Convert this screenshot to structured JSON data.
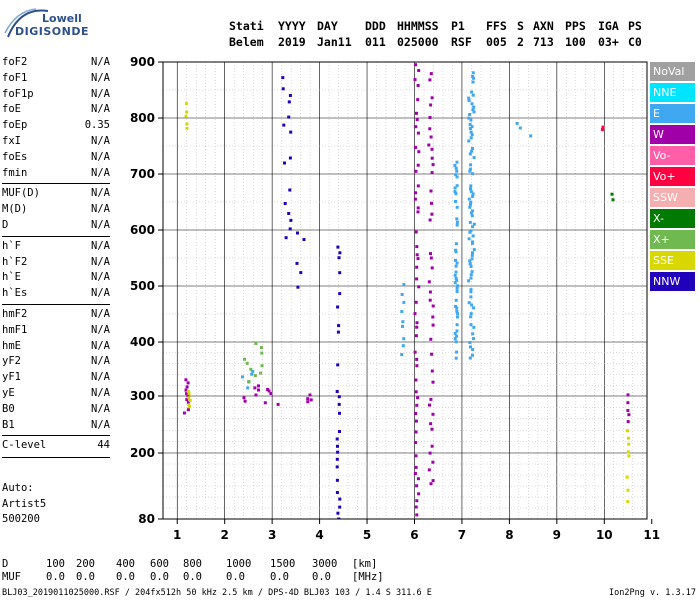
{
  "logo": {
    "line1": "Lowell",
    "line2": "DIGISONDE"
  },
  "header": {
    "row1": [
      "Stati",
      "YYYY",
      "DAY",
      "DDD",
      "HHMMSS",
      "P1",
      "FFS",
      "S",
      "AXN",
      "PPS",
      "IGA",
      "PS"
    ],
    "row2": [
      "Belem",
      "2019",
      "Jan11",
      "011",
      "025000",
      "RSF",
      "005",
      "2",
      "713",
      "100",
      "03+",
      "C0"
    ]
  },
  "params": {
    "group1": [
      {
        "name": "foF2",
        "value": "N/A"
      },
      {
        "name": "foF1",
        "value": "N/A"
      },
      {
        "name": "foF1p",
        "value": "N/A"
      },
      {
        "name": "foE",
        "value": "N/A"
      },
      {
        "name": "foEp",
        "value": "0.35"
      },
      {
        "name": "fxI",
        "value": "N/A"
      },
      {
        "name": "foEs",
        "value": "N/A"
      },
      {
        "name": "fmin",
        "value": "N/A"
      }
    ],
    "group2": [
      {
        "name": "MUF(D)",
        "value": "N/A"
      },
      {
        "name": "M(D)",
        "value": "N/A"
      },
      {
        "name": "D",
        "value": "N/A"
      }
    ],
    "group3": [
      {
        "name": "h`F",
        "value": "N/A"
      },
      {
        "name": "h`F2",
        "value": "N/A"
      },
      {
        "name": "h`E",
        "value": "N/A"
      },
      {
        "name": "h`Es",
        "value": "N/A"
      }
    ],
    "group4": [
      {
        "name": "hmF2",
        "value": "N/A"
      },
      {
        "name": "hmF1",
        "value": "N/A"
      },
      {
        "name": "hmE",
        "value": "N/A"
      },
      {
        "name": "yF2",
        "value": "N/A"
      },
      {
        "name": "yF1",
        "value": "N/A"
      },
      {
        "name": "yE",
        "value": "N/A"
      },
      {
        "name": "B0",
        "value": "N/A"
      },
      {
        "name": "B1",
        "value": "N/A"
      }
    ],
    "group5": [
      {
        "name": "C-level",
        "value": "44"
      }
    ]
  },
  "auto": {
    "line1": "Auto:",
    "line2": "Artist5",
    "line3": "500200"
  },
  "bottom_table": {
    "d_label": "D",
    "d_values": [
      "100",
      "200",
      "400",
      "600",
      "800",
      "1000",
      "1500",
      "3000",
      "[km]"
    ],
    "muf_label": "MUF",
    "muf_values": [
      "0.0",
      "0.0",
      "0.0",
      "0.0",
      "0.0",
      "0.0",
      "0.0",
      "0.0",
      "[MHz]"
    ]
  },
  "footer": {
    "left": "BLJ03_2019011025000.RSF / 204fx512h 50 kHz 2.5 km / DPS-4D BLJ03 103 / 1.4 S 311.6 E",
    "right": "Ion2Png v. 1.3.17"
  },
  "legend": [
    {
      "label": "NoVal",
      "color": "#a0a0a0"
    },
    {
      "label": "NNE",
      "color": "#00e5ff"
    },
    {
      "label": "E",
      "color": "#40a8f0"
    },
    {
      "label": "W",
      "color": "#a000a8"
    },
    {
      "label": "Vo-",
      "color": "#ff5fa8"
    },
    {
      "label": "Vo+",
      "color": "#ff0040"
    },
    {
      "label": "SSW",
      "color": "#f4b0b0"
    },
    {
      "label": "X-",
      "color": "#007a00"
    },
    {
      "label": "X+",
      "color": "#70b850"
    },
    {
      "label": "SSE",
      "color": "#d8d800"
    },
    {
      "label": "NNW",
      "color": "#2000b8"
    }
  ],
  "chart_data": {
    "type": "scatter",
    "title": "",
    "xlabel": "",
    "ylabel": "",
    "xlim": [
      0.7,
      10.9
    ],
    "ylim": [
      80,
      900
    ],
    "x_ticks": [
      1,
      2,
      3,
      4,
      5,
      6,
      7,
      8,
      9,
      10,
      11
    ],
    "y_ticks": [
      80,
      200,
      300,
      400,
      500,
      600,
      700,
      800,
      900
    ],
    "y_scale": "nonlinear",
    "grid": true,
    "legend_position": "right",
    "clusters": [
      {
        "series": "E",
        "x": 7.2,
        "y_start": 370,
        "y_end": 900,
        "step": 5,
        "jitter": 0.06
      },
      {
        "series": "E",
        "x": 6.88,
        "y_start": 370,
        "y_end": 720,
        "step": 5,
        "jitter": 0.03
      },
      {
        "series": "W",
        "x": 6.05,
        "y_start": 90,
        "y_end": 900,
        "step": 12,
        "jitter": 0.04
      },
      {
        "series": "W",
        "x": 6.35,
        "y_start": 140,
        "y_end": 900,
        "step": 14,
        "jitter": 0.05
      },
      {
        "series": "NNW",
        "x": 4.4,
        "y_start": 80,
        "y_end": 580,
        "step": 12,
        "jitter": 0.03
      },
      {
        "series": "NNW",
        "x": 3.3,
        "y_start": 590,
        "y_end": 870,
        "step": 14,
        "jitter": 0.1
      },
      {
        "series": "W",
        "x": 3.0,
        "y_start": 285,
        "y_end": 320,
        "step": 4,
        "jitter": 0.15
      },
      {
        "series": "W",
        "x": 2.6,
        "y_start": 290,
        "y_end": 330,
        "step": 4,
        "jitter": 0.2
      },
      {
        "series": "X+",
        "x": 2.6,
        "y_start": 325,
        "y_end": 400,
        "step": 6,
        "jitter": 0.2
      },
      {
        "series": "E",
        "x": 2.5,
        "y_start": 315,
        "y_end": 350,
        "step": 5,
        "jitter": 0.2
      },
      {
        "series": "W",
        "x": 3.7,
        "y_start": 290,
        "y_end": 305,
        "step": 3,
        "jitter": 0.15
      },
      {
        "series": "W",
        "x": 1.2,
        "y_start": 270,
        "y_end": 330,
        "step": 6,
        "jitter": 0.05
      },
      {
        "series": "SSE",
        "x": 1.2,
        "y_start": 780,
        "y_end": 830,
        "step": 8,
        "jitter": 0.02
      },
      {
        "series": "SSE",
        "x": 1.25,
        "y_start": 280,
        "y_end": 310,
        "step": 6,
        "jitter": 0.03
      },
      {
        "series": "SSE",
        "x": 10.5,
        "y_start": 85,
        "y_end": 250,
        "step": 12,
        "jitter": 0.02
      },
      {
        "series": "W",
        "x": 10.5,
        "y_start": 240,
        "y_end": 310,
        "step": 12,
        "jitter": 0.02
      },
      {
        "series": "E",
        "x": 5.75,
        "y_start": 380,
        "y_end": 500,
        "step": 15,
        "jitter": 0.03
      },
      {
        "series": "E",
        "x": 8.5,
        "y_start": 770,
        "y_end": 790,
        "step": 10,
        "jitter": 0.4
      },
      {
        "series": "X-",
        "x": 10.1,
        "y_start": 655,
        "y_end": 670,
        "step": 8,
        "jitter": 0.1
      },
      {
        "series": "Vo+",
        "x": 10.0,
        "y_start": 780,
        "y_end": 785,
        "step": 5,
        "jitter": 0.05
      },
      {
        "series": "NNW",
        "x": 3.6,
        "y_start": 500,
        "y_end": 620,
        "step": 20,
        "jitter": 0.08
      }
    ]
  }
}
